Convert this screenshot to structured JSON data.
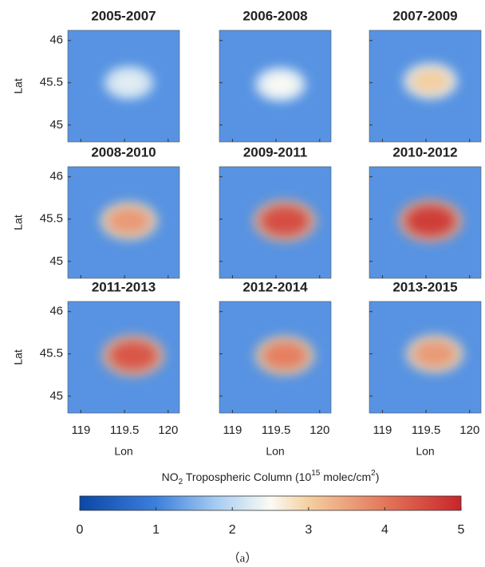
{
  "chart_data": {
    "type": "heatmap-grid",
    "panels": [
      {
        "title": "2005-2007",
        "center": [
          119.55,
          45.5
        ],
        "peak": 2.3
      },
      {
        "title": "2006-2008",
        "center": [
          119.55,
          45.48
        ],
        "peak": 2.5
      },
      {
        "title": "2007-2009",
        "center": [
          119.55,
          45.52
        ],
        "peak": 3.0
      },
      {
        "title": "2008-2010",
        "center": [
          119.55,
          45.48
        ],
        "peak": 3.6
      },
      {
        "title": "2009-2011",
        "center": [
          119.6,
          45.48
        ],
        "peak": 4.5
      },
      {
        "title": "2010-2012",
        "center": [
          119.55,
          45.48
        ],
        "peak": 4.7
      },
      {
        "title": "2011-2013",
        "center": [
          119.6,
          45.48
        ],
        "peak": 4.4
      },
      {
        "title": "2012-2014",
        "center": [
          119.6,
          45.48
        ],
        "peak": 3.9
      },
      {
        "title": "2013-2015",
        "center": [
          119.6,
          45.5
        ],
        "peak": 3.6
      }
    ],
    "background": 1.2,
    "xlabel": "Lon",
    "ylabel": "Lat",
    "xlim": [
      118.85,
      120.13
    ],
    "ylim": [
      44.8,
      46.12
    ],
    "xticks": [
      119,
      119.5,
      120
    ],
    "yticks": [
      45,
      45.5,
      46
    ],
    "colorbar_label": [
      "NO",
      "2",
      " Tropospheric Column (10",
      "15",
      " molec/cm",
      "2",
      ")"
    ],
    "clim": [
      0,
      5
    ],
    "cticks": [
      0,
      1,
      2,
      3,
      4,
      5
    ],
    "colormap": [
      [
        0,
        "#0b47a6"
      ],
      [
        1,
        "#3c7fdc"
      ],
      [
        1.8,
        "#a8cdf2"
      ],
      [
        2.5,
        "#fbfbf4"
      ],
      [
        3,
        "#f4cfa0"
      ],
      [
        4,
        "#e4765a"
      ],
      [
        5,
        "#c8252a"
      ]
    ],
    "caption": "（a）"
  }
}
